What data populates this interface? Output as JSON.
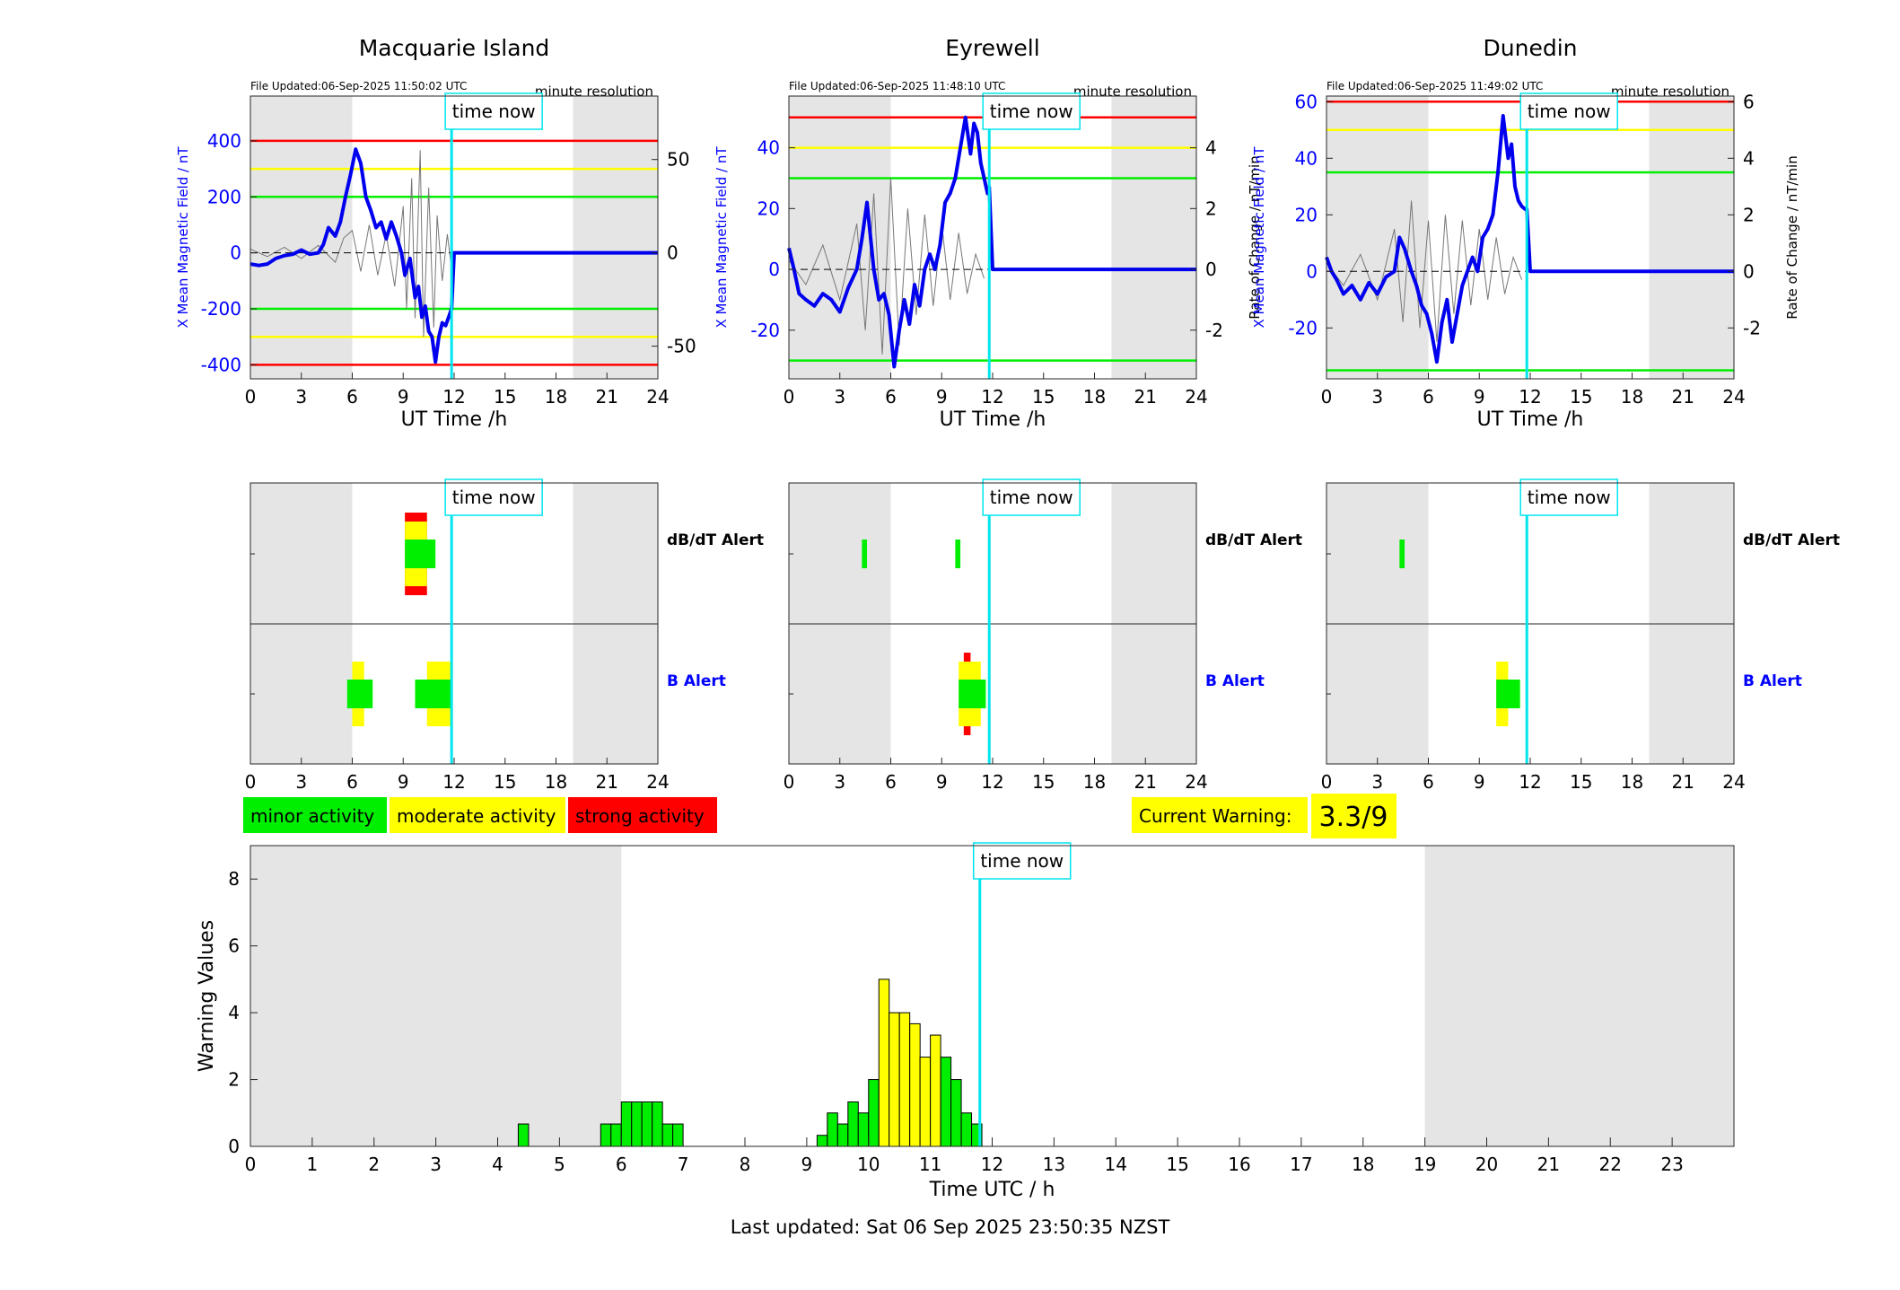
{
  "chart_data": [
    {
      "type": "line",
      "title": "Macquarie Island",
      "file_updated": "File Updated:06-Sep-2025 11:50:02 UTC",
      "resolution": "minute resolution",
      "xlabel": "UT Time /h",
      "ylabel": "X Mean Magnetic Field / nT",
      "ylabel_right": "",
      "xlim": [
        0,
        24
      ],
      "ylim": [
        -450,
        560
      ],
      "ylim_right": [
        -67.5,
        84
      ],
      "xticks": [
        0,
        3,
        6,
        9,
        12,
        15,
        18,
        21,
        24
      ],
      "yticks": [
        -400,
        -200,
        0,
        200,
        400
      ],
      "yticks_right": [
        -50,
        0,
        50
      ],
      "night_bands": [
        [
          0,
          6
        ],
        [
          19,
          24
        ]
      ],
      "time_now": 11.85,
      "time_now_label": "time now",
      "thresholds": [
        {
          "level": "red",
          "value": 400
        },
        {
          "level": "yellow",
          "value": 300
        },
        {
          "level": "green",
          "value": 200
        },
        {
          "level": "green",
          "value": -200
        },
        {
          "level": "yellow",
          "value": -300
        },
        {
          "level": "red",
          "value": -400
        }
      ],
      "series": [
        {
          "x": [
            0,
            0.5,
            1,
            1.5,
            2,
            2.5,
            3,
            3.5,
            4,
            4.3,
            4.6,
            5,
            5.3,
            5.6,
            5.9,
            6.2,
            6.5,
            6.8,
            7.1,
            7.4,
            7.7,
            8.0,
            8.3,
            8.6,
            8.9,
            9.1,
            9.4,
            9.7,
            9.9,
            10.1,
            10.3,
            10.5,
            10.7,
            10.9,
            11.1,
            11.3,
            11.5,
            11.85,
            12,
            24
          ],
          "y": [
            -40,
            -45,
            -40,
            -20,
            -10,
            -5,
            10,
            -5,
            0,
            30,
            90,
            60,
            110,
            200,
            280,
            370,
            320,
            200,
            150,
            90,
            110,
            50,
            110,
            60,
            0,
            -80,
            -20,
            -160,
            -120,
            -230,
            -190,
            -280,
            -300,
            -390,
            -300,
            -250,
            -260,
            -200,
            0,
            0
          ]
        }
      ],
      "rate_series": {
        "x": [
          0,
          1,
          2,
          3,
          4,
          5,
          5.5,
          6,
          6.5,
          7,
          7.5,
          8,
          8.5,
          9,
          9.2,
          9.5,
          9.7,
          10,
          10.2,
          10.5,
          10.8,
          11,
          11.3,
          11.6,
          11.8
        ],
        "y": [
          2,
          -2,
          3,
          -3,
          4,
          -5,
          8,
          12,
          -10,
          15,
          -12,
          10,
          -18,
          25,
          -30,
          40,
          -35,
          55,
          -45,
          35,
          -40,
          20,
          -15,
          10,
          -5
        ]
      }
    },
    {
      "type": "line",
      "title": "Eyrewell",
      "file_updated": "File Updated:06-Sep-2025 11:48:10 UTC",
      "resolution": "minute resolution",
      "xlabel": "UT Time /h",
      "ylabel": "X Mean Magnetic Field / nT",
      "ylabel_right": "Rate of Change / nT/min",
      "xlim": [
        0,
        24
      ],
      "ylim": [
        -36,
        57
      ],
      "ylim_right": [
        -3.6,
        5.7
      ],
      "xticks": [
        0,
        3,
        6,
        9,
        12,
        15,
        18,
        21,
        24
      ],
      "yticks": [
        -20,
        0,
        20,
        40
      ],
      "yticks_right": [
        -2,
        0,
        2,
        4
      ],
      "night_bands": [
        [
          0,
          6
        ],
        [
          19,
          24
        ]
      ],
      "time_now": 11.8,
      "time_now_label": "time now",
      "thresholds": [
        {
          "level": "red",
          "value": 50
        },
        {
          "level": "yellow",
          "value": 40
        },
        {
          "level": "green",
          "value": 30
        },
        {
          "level": "green",
          "value": -30
        }
      ],
      "series": [
        {
          "x": [
            0,
            0.3,
            0.6,
            1,
            1.5,
            2,
            2.5,
            3,
            3.5,
            4,
            4.3,
            4.6,
            5,
            5.3,
            5.6,
            5.9,
            6.2,
            6.5,
            6.8,
            7.1,
            7.4,
            7.7,
            8.0,
            8.3,
            8.6,
            8.9,
            9.2,
            9.5,
            9.8,
            10.1,
            10.4,
            10.7,
            10.9,
            11.1,
            11.3,
            11.5,
            11.7,
            11.8,
            12,
            24
          ],
          "y": [
            7,
            0,
            -8,
            -10,
            -12,
            -8,
            -10,
            -14,
            -6,
            0,
            10,
            22,
            0,
            -10,
            -8,
            -15,
            -32,
            -20,
            -10,
            -18,
            -5,
            -12,
            0,
            5,
            0,
            8,
            22,
            25,
            30,
            40,
            50,
            38,
            48,
            45,
            35,
            30,
            25,
            27,
            0,
            0
          ]
        }
      ],
      "rate_series": {
        "x": [
          0,
          1,
          2,
          3,
          4,
          4.5,
          5,
          5.5,
          6,
          6.5,
          7,
          7.5,
          8,
          8.5,
          9,
          9.5,
          10,
          10.5,
          11,
          11.5
        ],
        "y": [
          0.3,
          -0.5,
          0.8,
          -1,
          1.5,
          -2,
          2.5,
          -2.8,
          3,
          -2.5,
          2,
          -1.5,
          1.8,
          -1.2,
          1.5,
          -1,
          1.2,
          -0.8,
          0.5,
          -0.3
        ]
      }
    },
    {
      "type": "line",
      "title": "Dunedin",
      "file_updated": "File Updated:06-Sep-2025 11:49:02 UTC",
      "resolution": "minute resolution",
      "xlabel": "UT Time /h",
      "ylabel": "X Mean Magnetic Field / nT",
      "ylabel_right": "Rate of Change / nT/min",
      "xlim": [
        0,
        24
      ],
      "ylim": [
        -38,
        62
      ],
      "ylim_right": [
        -3.8,
        6.2
      ],
      "xticks": [
        0,
        3,
        6,
        9,
        12,
        15,
        18,
        21,
        24
      ],
      "yticks": [
        -20,
        0,
        20,
        40,
        60
      ],
      "yticks_right": [
        -2,
        0,
        2,
        4,
        6
      ],
      "night_bands": [
        [
          0,
          6
        ],
        [
          19,
          24
        ]
      ],
      "time_now": 11.8,
      "time_now_label": "time now",
      "thresholds": [
        {
          "level": "red",
          "value": 60
        },
        {
          "level": "yellow",
          "value": 50
        },
        {
          "level": "green",
          "value": 35
        },
        {
          "level": "green",
          "value": -35
        }
      ],
      "series": [
        {
          "x": [
            0,
            0.3,
            0.6,
            1,
            1.5,
            2,
            2.5,
            3,
            3.5,
            4,
            4.3,
            4.6,
            5,
            5.3,
            5.6,
            5.9,
            6.2,
            6.5,
            6.8,
            7.1,
            7.4,
            7.7,
            8.0,
            8.3,
            8.6,
            8.9,
            9.2,
            9.5,
            9.8,
            10.1,
            10.4,
            10.7,
            10.9,
            11.1,
            11.3,
            11.5,
            11.7,
            11.8,
            12,
            24
          ],
          "y": [
            5,
            0,
            -3,
            -8,
            -5,
            -10,
            -4,
            -8,
            -2,
            0,
            12,
            8,
            0,
            -5,
            -12,
            -15,
            -22,
            -32,
            -18,
            -10,
            -25,
            -15,
            -5,
            0,
            5,
            0,
            12,
            15,
            20,
            35,
            55,
            40,
            45,
            30,
            25,
            23,
            22,
            22,
            0,
            0
          ]
        }
      ],
      "rate_series": {
        "x": [
          0,
          1,
          2,
          3,
          4,
          4.5,
          5,
          5.5,
          6,
          6.5,
          7,
          7.5,
          8,
          8.5,
          9,
          9.5,
          10,
          10.5,
          11,
          11.5
        ],
        "y": [
          0.3,
          -0.5,
          0.6,
          -1,
          1.5,
          -1.8,
          2.5,
          -2,
          1.8,
          -2.5,
          2,
          -1.5,
          1.8,
          -1.2,
          1.5,
          -1,
          1.2,
          -0.8,
          0.5,
          -0.3
        ]
      }
    },
    {
      "type": "bar",
      "panel": "alerts",
      "station": "Macquarie Island",
      "xlim": [
        0,
        24
      ],
      "xticks": [
        0,
        3,
        6,
        9,
        12,
        15,
        18,
        21,
        24
      ],
      "rows": [
        "dB/dT Alert",
        "B Alert"
      ],
      "row_label_colors": [
        "#000000",
        "#0000ff"
      ],
      "time_now": 11.85,
      "time_now_label": "time now",
      "night_bands": [
        [
          0,
          6
        ],
        [
          19,
          24
        ]
      ],
      "events": [
        {
          "row": "dB/dT Alert",
          "start": 9.1,
          "end": 10.4,
          "level": "red"
        },
        {
          "row": "dB/dT Alert",
          "start": 9.1,
          "end": 10.4,
          "level": "yellow"
        },
        {
          "row": "dB/dT Alert",
          "start": 9.1,
          "end": 10.9,
          "level": "green"
        },
        {
          "row": "B Alert",
          "start": 6.0,
          "end": 6.7,
          "level": "yellow"
        },
        {
          "row": "B Alert",
          "start": 5.7,
          "end": 7.2,
          "level": "green"
        },
        {
          "row": "B Alert",
          "start": 10.4,
          "end": 11.9,
          "level": "yellow"
        },
        {
          "row": "B Alert",
          "start": 9.7,
          "end": 11.9,
          "level": "green"
        }
      ]
    },
    {
      "type": "bar",
      "panel": "alerts",
      "station": "Eyrewell",
      "xlim": [
        0,
        24
      ],
      "xticks": [
        0,
        3,
        6,
        9,
        12,
        15,
        18,
        21,
        24
      ],
      "rows": [
        "dB/dT Alert",
        "B Alert"
      ],
      "row_label_colors": [
        "#000000",
        "#0000ff"
      ],
      "time_now": 11.8,
      "time_now_label": "time now",
      "night_bands": [
        [
          0,
          6
        ],
        [
          19,
          24
        ]
      ],
      "events": [
        {
          "row": "dB/dT Alert",
          "start": 4.3,
          "end": 4.6,
          "level": "green"
        },
        {
          "row": "dB/dT Alert",
          "start": 9.8,
          "end": 10.1,
          "level": "green"
        },
        {
          "row": "B Alert",
          "start": 10.3,
          "end": 10.7,
          "level": "red"
        },
        {
          "row": "B Alert",
          "start": 10.0,
          "end": 11.3,
          "level": "yellow"
        },
        {
          "row": "B Alert",
          "start": 10.0,
          "end": 11.6,
          "level": "green"
        }
      ]
    },
    {
      "type": "bar",
      "panel": "alerts",
      "station": "Dunedin",
      "xlim": [
        0,
        24
      ],
      "xticks": [
        0,
        3,
        6,
        9,
        12,
        15,
        18,
        21,
        24
      ],
      "rows": [
        "dB/dT Alert",
        "B Alert"
      ],
      "row_label_colors": [
        "#000000",
        "#0000ff"
      ],
      "time_now": 11.8,
      "time_now_label": "time now",
      "night_bands": [
        [
          0,
          6
        ],
        [
          19,
          24
        ]
      ],
      "events": [
        {
          "row": "dB/dT Alert",
          "start": 4.3,
          "end": 4.6,
          "level": "green"
        },
        {
          "row": "B Alert",
          "start": 10.0,
          "end": 10.7,
          "level": "yellow"
        },
        {
          "row": "B Alert",
          "start": 10.0,
          "end": 11.4,
          "level": "green"
        }
      ]
    },
    {
      "type": "bar",
      "panel": "warning",
      "xlabel": "Time UTC / h",
      "ylabel": "Warning Values",
      "xlim": [
        0,
        24
      ],
      "ylim": [
        0,
        9
      ],
      "xticks": [
        0,
        1,
        2,
        3,
        4,
        5,
        6,
        7,
        8,
        9,
        10,
        11,
        12,
        13,
        14,
        15,
        16,
        17,
        18,
        19,
        20,
        21,
        22,
        23
      ],
      "yticks": [
        0,
        2,
        4,
        6,
        8
      ],
      "night_bands": [
        [
          0,
          6
        ],
        [
          19,
          24
        ]
      ],
      "time_now": 11.8,
      "time_now_label": "time now",
      "bin_width": 0.1667,
      "bars": [
        {
          "t": 4.333,
          "v": 0.67,
          "level": "green"
        },
        {
          "t": 5.667,
          "v": 0.67,
          "level": "green"
        },
        {
          "t": 5.833,
          "v": 0.67,
          "level": "green"
        },
        {
          "t": 6.0,
          "v": 1.33,
          "level": "green"
        },
        {
          "t": 6.167,
          "v": 1.33,
          "level": "green"
        },
        {
          "t": 6.333,
          "v": 1.33,
          "level": "green"
        },
        {
          "t": 6.5,
          "v": 1.33,
          "level": "green"
        },
        {
          "t": 6.667,
          "v": 0.67,
          "level": "green"
        },
        {
          "t": 6.833,
          "v": 0.67,
          "level": "green"
        },
        {
          "t": 9.167,
          "v": 0.33,
          "level": "green"
        },
        {
          "t": 9.333,
          "v": 1.0,
          "level": "green"
        },
        {
          "t": 9.5,
          "v": 0.67,
          "level": "green"
        },
        {
          "t": 9.667,
          "v": 1.33,
          "level": "green"
        },
        {
          "t": 9.833,
          "v": 1.0,
          "level": "green"
        },
        {
          "t": 10.0,
          "v": 2.0,
          "level": "green"
        },
        {
          "t": 10.167,
          "v": 5.0,
          "level": "yellow"
        },
        {
          "t": 10.333,
          "v": 4.0,
          "level": "yellow"
        },
        {
          "t": 10.5,
          "v": 4.0,
          "level": "yellow"
        },
        {
          "t": 10.667,
          "v": 3.67,
          "level": "yellow"
        },
        {
          "t": 10.833,
          "v": 2.67,
          "level": "yellow"
        },
        {
          "t": 11.0,
          "v": 3.33,
          "level": "yellow"
        },
        {
          "t": 11.167,
          "v": 2.67,
          "level": "green"
        },
        {
          "t": 11.333,
          "v": 2.0,
          "level": "green"
        },
        {
          "t": 11.5,
          "v": 1.0,
          "level": "green"
        },
        {
          "t": 11.667,
          "v": 0.67,
          "level": "green"
        }
      ]
    }
  ],
  "legend": {
    "minor": "minor activity",
    "moderate": "moderate activity",
    "strong": "strong activity"
  },
  "current_warning": {
    "label": "Current Warning:",
    "value": "3.3/9"
  },
  "colors": {
    "field_line": "#0000ee",
    "rate_line": "#777777",
    "time_now": "#00e5ee",
    "night_band": "#e5e5e5",
    "red": "#ff0000",
    "yellow": "#ffff00",
    "green": "#00ee00"
  },
  "footer": {
    "last_updated": "Last updated: Sat 06 Sep 2025 23:50:35 NZST"
  }
}
